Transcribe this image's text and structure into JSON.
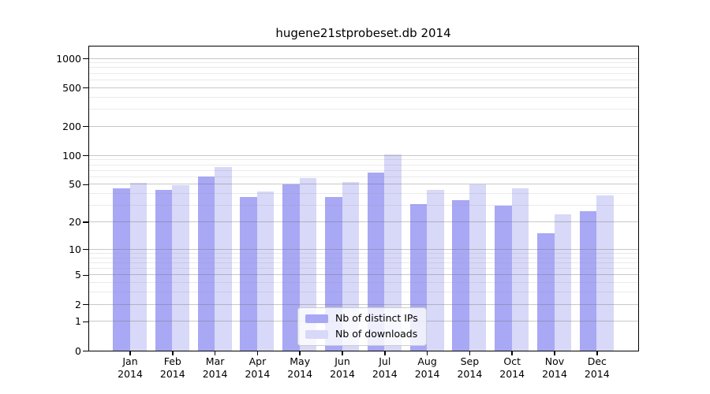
{
  "chart_data": {
    "type": "bar",
    "title": "hugene21stprobeset.db 2014",
    "categories": [
      "Jan 2014",
      "Feb 2014",
      "Mar 2014",
      "Apr 2014",
      "May 2014",
      "Jun 2014",
      "Jul 2014",
      "Aug 2014",
      "Sep 2014",
      "Oct 2014",
      "Nov 2014",
      "Dec 2014"
    ],
    "series": [
      {
        "name": "Nb of distinct IPs",
        "color": "#a8a8f5",
        "values": [
          45,
          44,
          60,
          37,
          50,
          37,
          66,
          31,
          34,
          30,
          15,
          26
        ]
      },
      {
        "name": "Nb of downloads",
        "color": "#d8d8f8",
        "values": [
          52,
          49,
          76,
          42,
          58,
          53,
          102,
          44,
          50,
          45,
          24,
          38
        ]
      }
    ],
    "y_axis": {
      "scale": "log1p",
      "ticks": [
        0,
        1,
        2,
        5,
        10,
        20,
        50,
        100,
        200,
        500,
        1000
      ],
      "minor_gridlines": [
        3,
        4,
        6,
        7,
        8,
        9,
        30,
        40,
        60,
        70,
        80,
        90,
        300,
        400,
        600,
        700,
        800,
        900
      ],
      "max": 1000
    },
    "legend": {
      "position": "lower-center inside plot"
    },
    "grid": "major and minor horizontal gridlines drawn over bars",
    "colors": {
      "distinct_ips": "#a8a8f5",
      "downloads": "#d8d8f8",
      "gridline": "#d0d0d0"
    }
  }
}
